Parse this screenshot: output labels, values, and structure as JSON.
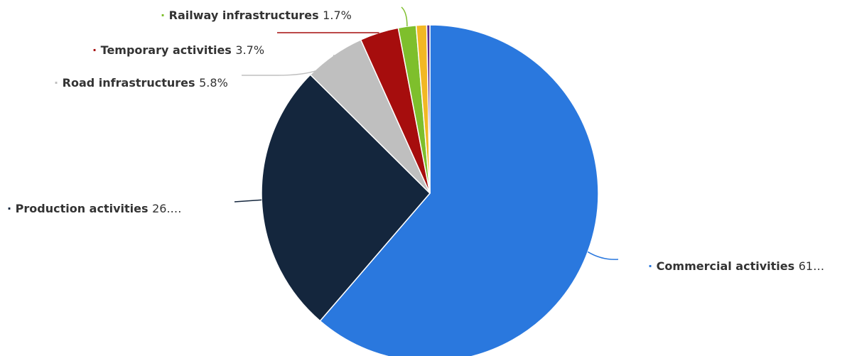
{
  "chart_data": {
    "type": "pie",
    "title": "",
    "colors": {
      "Commercial activities": "#2a78de",
      "Production activities": "#14263d",
      "Road infrastructures": "#bfbfbf",
      "Temporary activities": "#a60d0d",
      "Railway infrastructures": "#7ebf2c",
      "Other (yellow)": "#f2b824",
      "Other (purple)": "#5b2d8f"
    },
    "slices": [
      {
        "name": "Commercial activities",
        "value": 61,
        "value_label": "61…",
        "color": "#2a78de",
        "labeled": true
      },
      {
        "name": "Production activities",
        "value": 26,
        "value_label": "26.…",
        "color": "#14263d",
        "labeled": true
      },
      {
        "name": "Road infrastructures",
        "value": 5.8,
        "value_label": "5.8%",
        "color": "#bfbfbf",
        "labeled": true
      },
      {
        "name": "Temporary activities",
        "value": 3.7,
        "value_label": "3.7%",
        "color": "#a60d0d",
        "labeled": true
      },
      {
        "name": "Railway infrastructures",
        "value": 1.7,
        "value_label": "1.7%",
        "color": "#7ebf2c",
        "labeled": true
      },
      {
        "name": "",
        "value": 1.0,
        "value_label": "",
        "color": "#f2b824",
        "labeled": false
      },
      {
        "name": "",
        "value": 0.3,
        "value_label": "",
        "color": "#5b2d8f",
        "labeled": false
      }
    ]
  }
}
